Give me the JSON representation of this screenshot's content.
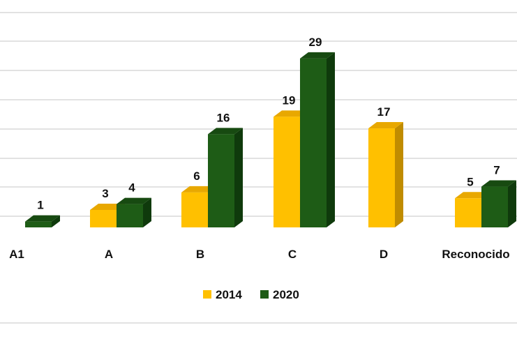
{
  "chart_data": {
    "type": "bar",
    "style": "3d-clustered-column",
    "categories": [
      "A1",
      "A",
      "B",
      "C",
      "D",
      "Reconocido"
    ],
    "series": [
      {
        "name": "2014",
        "values": [
          0,
          3,
          6,
          19,
          17,
          5
        ],
        "color": "#FFC000",
        "color_top": "#E8A800",
        "color_side": "#C08C00"
      },
      {
        "name": "2020",
        "values": [
          1,
          4,
          16,
          29,
          0,
          7
        ],
        "color": "#1E5C16",
        "color_top": "#174A11",
        "color_side": "#0F3A0C"
      }
    ],
    "data_labels": [
      [
        "",
        "3",
        "6",
        "19",
        "17",
        "5"
      ],
      [
        "1",
        "4",
        "16",
        "29",
        "",
        "7"
      ]
    ],
    "ylim": [
      0,
      32
    ],
    "grid": true,
    "gridline_color": "#D9D9D9",
    "legend_position": "bottom",
    "title": "",
    "xlabel": "",
    "ylabel": ""
  }
}
